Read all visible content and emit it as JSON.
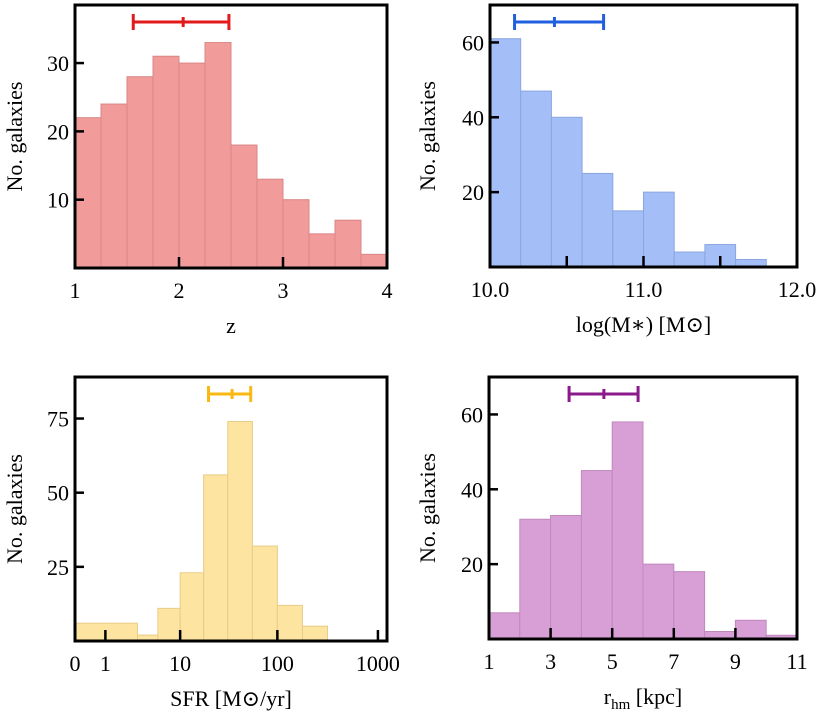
{
  "chart_data": [
    {
      "type": "histogram",
      "xlabel": [
        {
          "text": "z"
        }
      ],
      "ylabel": "No. galaxies",
      "bins": [
        1,
        1.25,
        1.5,
        1.75,
        2,
        2.25,
        2.5,
        2.75,
        3,
        3.25,
        3.5,
        3.75,
        4
      ],
      "values": [
        22,
        24,
        28,
        31,
        30,
        33,
        18,
        13,
        10,
        5,
        7,
        2
      ],
      "color": "#f29b9b",
      "edge_color": "#d98686",
      "errorbar": {
        "low": 1.56,
        "center": 2.04,
        "high": 2.48,
        "color": "#e31a1c"
      },
      "xlim": [
        1,
        4
      ],
      "xticks": [
        1,
        2,
        3,
        4
      ],
      "ylim": [
        0,
        38.5
      ],
      "yticks": [
        10,
        20,
        30
      ]
    },
    {
      "type": "histogram",
      "xlabel": [
        {
          "text": "log(M∗) [M⊙]"
        }
      ],
      "ylabel": "No. galaxies",
      "bins": [
        10.0,
        10.2,
        10.4,
        10.6,
        10.8,
        11.0,
        11.2,
        11.4,
        11.6,
        11.8
      ],
      "values": [
        61,
        47,
        40,
        25,
        15,
        20,
        4,
        6,
        2
      ],
      "color": "#a4bff7",
      "edge_color": "#8aa6e0",
      "errorbar": {
        "low": 10.16,
        "center": 10.42,
        "high": 10.74,
        "color": "#1f5fe0"
      },
      "xlim": [
        10,
        12
      ],
      "xticks": [
        {
          "value": 10,
          "label": "10.0"
        },
        {
          "value": 11,
          "label": "11.0"
        },
        {
          "value": 12,
          "label": "12.0"
        }
      ],
      "xminor": [
        10.5,
        11.5
      ],
      "ylim": [
        0,
        70
      ],
      "yticks": [
        20,
        40,
        60
      ]
    },
    {
      "type": "histogram",
      "xscale": "symlog",
      "xlabel": [
        {
          "text": "SFR [M⊙/yr]"
        }
      ],
      "ylabel": "No. galaxies",
      "bins": [
        0,
        3.16,
        5.62,
        10,
        17.8,
        31.6,
        56.2,
        100,
        178,
        316
      ],
      "values": [
        6,
        2,
        11,
        23,
        56,
        74,
        32,
        12,
        5
      ],
      "color": "#fde4a0",
      "edge_color": "#e8cc88",
      "errorbar": {
        "low": 20,
        "center": 35,
        "high": 54,
        "color": "#f9b911"
      },
      "xlim": [
        0,
        1230
      ],
      "xticks": [
        0,
        1,
        10,
        100,
        1000
      ],
      "ylim": [
        0,
        89
      ],
      "yticks": [
        25,
        50,
        75
      ]
    },
    {
      "type": "histogram",
      "xlabel": [
        {
          "text": "r"
        },
        {
          "text": "hm",
          "sub": true
        },
        {
          "text": " [kpc]"
        }
      ],
      "ylabel": "No. galaxies",
      "bins": [
        1,
        2,
        3,
        4,
        5,
        6,
        7,
        8,
        9,
        10,
        11
      ],
      "values": [
        7,
        32,
        33,
        45,
        58,
        20,
        18,
        2,
        5,
        1
      ],
      "color": "#d89fd6",
      "edge_color": "#c088be",
      "errorbar": {
        "low": 3.6,
        "center": 4.73,
        "high": 5.84,
        "color": "#8b1a8b"
      },
      "xlim": [
        1,
        11
      ],
      "xticks": [
        1,
        3,
        5,
        7,
        9,
        11
      ],
      "ylim": [
        0,
        70
      ],
      "yticks": [
        20,
        40,
        60
      ]
    }
  ]
}
